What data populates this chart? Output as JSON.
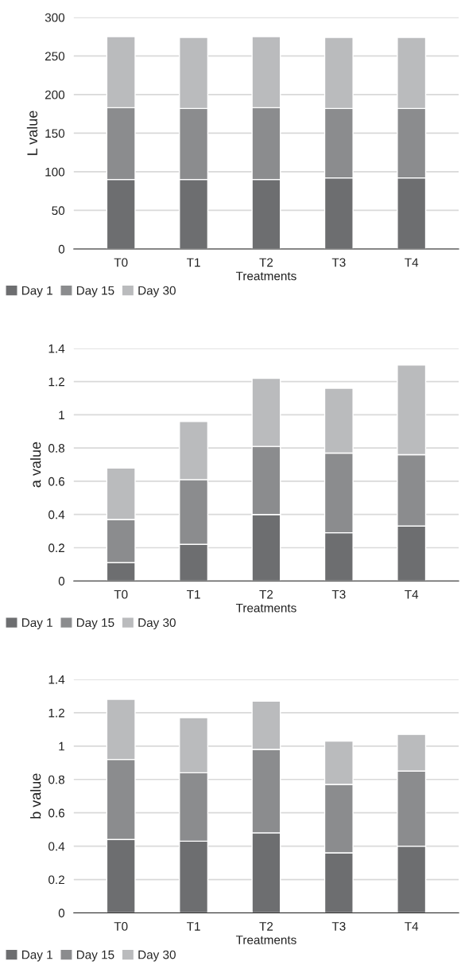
{
  "chart_data": [
    {
      "type": "bar",
      "stacked": true,
      "ylabel": "L value",
      "xlabel": "Treatments",
      "categories": [
        "T0",
        "T1",
        "T2",
        "T3",
        "T4"
      ],
      "ylim": [
        0,
        300
      ],
      "yticks": [
        0,
        50,
        100,
        150,
        200,
        250,
        300
      ],
      "grid": "y",
      "legend": "bottom left",
      "series": [
        {
          "name": "Day 1",
          "color": "#6d6e70",
          "values": [
            90,
            90,
            90,
            92,
            92
          ]
        },
        {
          "name": "Day 15",
          "color": "#8b8c8e",
          "values": [
            93,
            92,
            93,
            90,
            90
          ]
        },
        {
          "name": "Day 30",
          "color": "#babbbd",
          "values": [
            92,
            92,
            92,
            92,
            92
          ]
        }
      ]
    },
    {
      "type": "bar",
      "stacked": true,
      "ylabel": "a value",
      "xlabel": "Treatments",
      "categories": [
        "T0",
        "T1",
        "T2",
        "T3",
        "T4"
      ],
      "ylim": [
        0,
        1.4
      ],
      "yticks": [
        0,
        0.2,
        0.4,
        0.6,
        0.8,
        {
          "value": 1,
          "label": "1"
        },
        1.2,
        1.4
      ],
      "grid": "y",
      "legend": "bottom left",
      "series": [
        {
          "name": "Day 1",
          "color": "#6d6e70",
          "values": [
            0.11,
            0.22,
            0.4,
            0.29,
            0.33
          ]
        },
        {
          "name": "Day 15",
          "color": "#8b8c8e",
          "values": [
            0.26,
            0.39,
            0.41,
            0.48,
            0.43
          ]
        },
        {
          "name": "Day 30",
          "color": "#babbbd",
          "values": [
            0.31,
            0.35,
            0.41,
            0.39,
            0.54
          ]
        }
      ]
    },
    {
      "type": "bar",
      "stacked": true,
      "ylabel": "b value",
      "xlabel": "Treatments",
      "categories": [
        "T0",
        "T1",
        "T2",
        "T3",
        "T4"
      ],
      "ylim": [
        0,
        1.4
      ],
      "yticks": [
        0,
        0.2,
        0.4,
        0.6,
        0.8,
        {
          "value": 1,
          "label": "1"
        },
        1.2,
        1.4
      ],
      "grid": "y",
      "legend": "bottom left",
      "series": [
        {
          "name": "Day 1",
          "color": "#6d6e70",
          "values": [
            0.44,
            0.43,
            0.48,
            0.36,
            0.4
          ]
        },
        {
          "name": "Day 15",
          "color": "#8b8c8e",
          "values": [
            0.48,
            0.41,
            0.5,
            0.41,
            0.45
          ]
        },
        {
          "name": "Day 30",
          "color": "#babbbd",
          "values": [
            0.36,
            0.33,
            0.29,
            0.26,
            0.22
          ]
        }
      ]
    }
  ]
}
